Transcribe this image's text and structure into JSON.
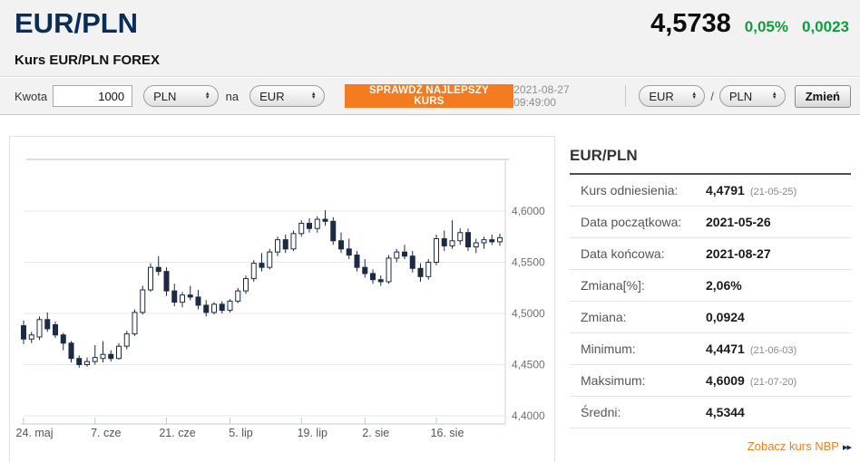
{
  "header": {
    "title": "EUR/PLN",
    "subtitle": "Kurs EUR/PLN FOREX",
    "price": "4,5738",
    "change_percent": "0,05%",
    "change_abs": "0,0023",
    "title_color": "#0b2c57",
    "up_color": "#0f9d3f"
  },
  "toolbar": {
    "amount_label": "Kwota",
    "amount_value": "1000",
    "from_currency": "PLN",
    "to_label": "na",
    "to_currency": "EUR",
    "cta_label": "SPRAWDŹ NAJLEPSZY KURS",
    "cta_color": "#f47b20",
    "timestamp": "2021-08-27 09:49:00",
    "pair_base": "EUR",
    "pair_separator": "/",
    "pair_quote": "PLN",
    "change_button_label": "Zmień"
  },
  "stats": {
    "heading": "EUR/PLN",
    "rows": [
      {
        "label": "Kurs odniesienia:",
        "value": "4,4791",
        "note": "(21-05-25)"
      },
      {
        "label": "Data początkowa:",
        "value": "2021-05-26",
        "note": ""
      },
      {
        "label": "Data końcowa:",
        "value": "2021-08-27",
        "note": ""
      },
      {
        "label": "Zmiana[%]:",
        "value": "2,06%",
        "note": ""
      },
      {
        "label": "Zmiana:",
        "value": "0,0924",
        "note": ""
      },
      {
        "label": "Minimum:",
        "value": "4,4471",
        "note": "(21-06-03)"
      },
      {
        "label": "Maksimum:",
        "value": "4,6009",
        "note": "(21-07-20)"
      },
      {
        "label": "Średni:",
        "value": "4,5344",
        "note": ""
      }
    ],
    "link_label": "Zobacz kurs NBP",
    "link_arrows": "▸▸"
  },
  "chart_data": {
    "type": "candlestick",
    "title": "EUR/PLN FOREX 2021-05-24 to 2021-08-27",
    "ylim": [
      4.39,
      4.65
    ],
    "grid": true,
    "y_axis": {
      "ticks": [
        4.6,
        4.55,
        4.5,
        4.45,
        4.4
      ],
      "labels": [
        "4,6000",
        "4,5500",
        "4,5000",
        "4,4500",
        "4,4000"
      ]
    },
    "x_axis": {
      "tick_indices": [
        0,
        9,
        18,
        26,
        35,
        43,
        52
      ],
      "tick_labels": [
        "24. maj",
        "7. cze",
        "21. cze",
        "5. lip",
        "19. lip",
        "2. sie",
        "16. sie"
      ]
    },
    "colors": {
      "up_fill": "#ffffff",
      "down_fill": "#1c2b45",
      "outline": "#1c2b45",
      "grid": "#e7e7e7",
      "axis": "#b9cade"
    },
    "ohlc": [
      [
        4.488,
        4.493,
        4.47,
        4.475
      ],
      [
        4.475,
        4.482,
        4.471,
        4.479
      ],
      [
        4.477,
        4.497,
        4.474,
        4.494
      ],
      [
        4.494,
        4.501,
        4.482,
        4.485
      ],
      [
        4.489,
        4.492,
        4.476,
        4.479
      ],
      [
        4.479,
        4.481,
        4.464,
        4.471
      ],
      [
        4.471,
        4.473,
        4.452,
        4.456
      ],
      [
        4.456,
        4.459,
        4.4471,
        4.45
      ],
      [
        4.45,
        4.457,
        4.448,
        4.453
      ],
      [
        4.453,
        4.469,
        4.45,
        4.457
      ],
      [
        4.456,
        4.473,
        4.452,
        4.46
      ],
      [
        4.46,
        4.464,
        4.453,
        4.456
      ],
      [
        4.456,
        4.471,
        4.455,
        4.468
      ],
      [
        4.468,
        4.483,
        4.465,
        4.48
      ],
      [
        4.48,
        4.504,
        4.478,
        4.501
      ],
      [
        4.501,
        4.527,
        4.499,
        4.523
      ],
      [
        4.523,
        4.549,
        4.521,
        4.545
      ],
      [
        4.545,
        4.556,
        4.537,
        4.541
      ],
      [
        4.541,
        4.545,
        4.517,
        4.522
      ],
      [
        4.522,
        4.529,
        4.507,
        4.511
      ],
      [
        4.511,
        4.521,
        4.506,
        4.518
      ],
      [
        4.518,
        4.527,
        4.513,
        4.516
      ],
      [
        4.516,
        4.523,
        4.504,
        4.508
      ],
      [
        4.508,
        4.513,
        4.497,
        4.501
      ],
      [
        4.501,
        4.511,
        4.499,
        4.509
      ],
      [
        4.509,
        4.512,
        4.5,
        4.503
      ],
      [
        4.503,
        4.514,
        4.501,
        4.512
      ],
      [
        4.512,
        4.525,
        4.51,
        4.522
      ],
      [
        4.522,
        4.537,
        4.519,
        4.534
      ],
      [
        4.534,
        4.552,
        4.531,
        4.549
      ],
      [
        4.549,
        4.559,
        4.541,
        4.545
      ],
      [
        4.545,
        4.563,
        4.543,
        4.56
      ],
      [
        4.56,
        4.575,
        4.556,
        4.572
      ],
      [
        4.572,
        4.577,
        4.559,
        4.563
      ],
      [
        4.563,
        4.581,
        4.561,
        4.578
      ],
      [
        4.578,
        4.591,
        4.575,
        4.588
      ],
      [
        4.588,
        4.593,
        4.579,
        4.583
      ],
      [
        4.583,
        4.595,
        4.579,
        4.592
      ],
      [
        4.592,
        4.6009,
        4.586,
        4.59
      ],
      [
        4.59,
        4.594,
        4.567,
        4.571
      ],
      [
        4.571,
        4.579,
        4.559,
        4.563
      ],
      [
        4.563,
        4.573,
        4.553,
        4.557
      ],
      [
        4.557,
        4.561,
        4.541,
        4.545
      ],
      [
        4.545,
        4.553,
        4.535,
        4.539
      ],
      [
        4.539,
        4.543,
        4.529,
        4.533
      ],
      [
        4.533,
        4.537,
        4.527,
        4.531
      ],
      [
        4.531,
        4.557,
        4.529,
        4.554
      ],
      [
        4.554,
        4.563,
        4.55,
        4.56
      ],
      [
        4.56,
        4.567,
        4.553,
        4.556
      ],
      [
        4.556,
        4.561,
        4.54,
        4.544
      ],
      [
        4.544,
        4.549,
        4.531,
        4.536
      ],
      [
        4.536,
        4.553,
        4.533,
        4.55
      ],
      [
        4.55,
        4.577,
        4.547,
        4.573
      ],
      [
        4.573,
        4.581,
        4.561,
        4.566
      ],
      [
        4.566,
        4.591,
        4.563,
        4.571
      ],
      [
        4.571,
        4.583,
        4.567,
        4.579
      ],
      [
        4.579,
        4.583,
        4.561,
        4.565
      ],
      [
        4.565,
        4.573,
        4.559,
        4.569
      ],
      [
        4.569,
        4.575,
        4.563,
        4.572
      ],
      [
        4.572,
        4.577,
        4.567,
        4.57
      ],
      [
        4.57,
        4.578,
        4.566,
        4.574
      ]
    ]
  }
}
